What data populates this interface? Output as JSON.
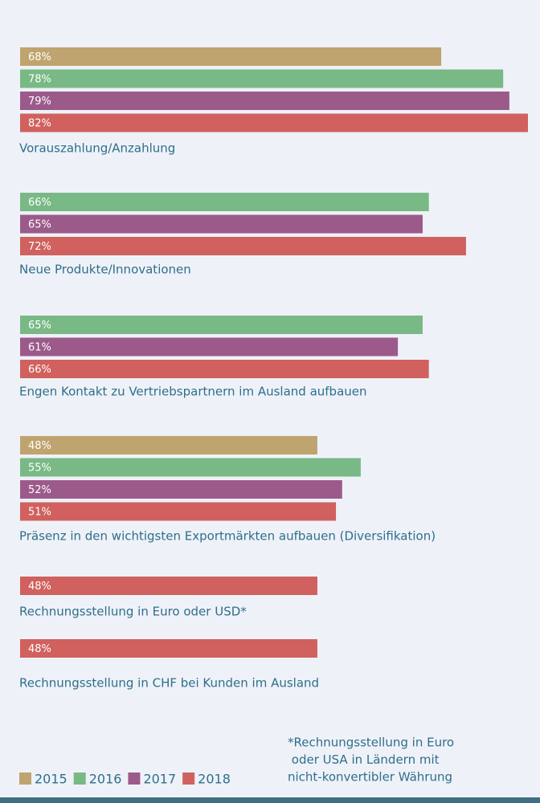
{
  "chart_data": {
    "type": "bar",
    "orientation": "horizontal",
    "categories": [
      "Vorauszahlung/Anzahlung",
      "Neue Produkte/Innovationen",
      "Engen Kontakt zu Vertriebspartnern im Ausland aufbauen",
      "Präsenz in den wichtigsten Exportmärkten aufbauen (Diversifikation)",
      "Rechnungsstellung in Euro oder USD*",
      "Rechnungsstellung in CHF bei Kunden im Ausland"
    ],
    "series": [
      {
        "name": "2015",
        "color": "#bfa46f",
        "values": [
          68,
          null,
          null,
          48,
          null,
          null
        ],
        "value_labels": [
          "68%",
          null,
          null,
          "48%",
          null,
          null
        ]
      },
      {
        "name": "2016",
        "color": "#79b985",
        "values": [
          78,
          66,
          65,
          55,
          null,
          null
        ],
        "value_labels": [
          "78%",
          "66%",
          "65%",
          "55%",
          null,
          null
        ]
      },
      {
        "name": "2017",
        "color": "#9c5a8b",
        "values": [
          79,
          65,
          61,
          52,
          null,
          null
        ],
        "value_labels": [
          "79%",
          "65%",
          "61%",
          "52%",
          null,
          null
        ]
      },
      {
        "name": "2018",
        "color": "#d0615e",
        "values": [
          82,
          72,
          66,
          51,
          48,
          48
        ],
        "value_labels": [
          "82%",
          "72%",
          "66%",
          "51%",
          "48%",
          "48%"
        ]
      }
    ],
    "note": [
      "*Rechnungsstellung in Euro",
      " oder USA in Ländern mit",
      "nicht-konvertibler Währung"
    ]
  }
}
